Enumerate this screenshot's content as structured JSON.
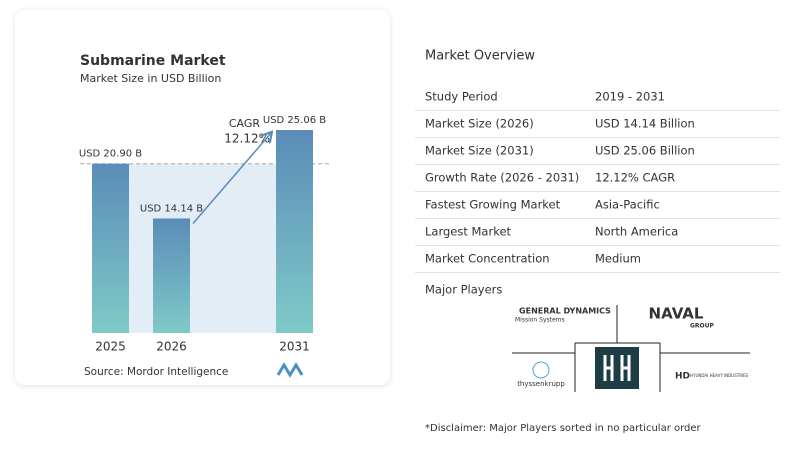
{
  "chart_data": {
    "type": "bar",
    "title": "Submarine Market",
    "subtitle": "Market Size in USD Billion",
    "categories": [
      "2025",
      "2026",
      "2031"
    ],
    "values": [
      20.9,
      14.14,
      25.06
    ],
    "value_labels": [
      "USD 20.90 B",
      "USD 14.14 B",
      "USD 25.06 B"
    ],
    "colors": [
      "#5b8cb8",
      "#7fcac8"
    ],
    "annotations": [
      "CAGR",
      "12.12%"
    ],
    "source": "Source: Mordor Intelligence"
  },
  "overview": {
    "title": "Market Overview",
    "rows": [
      [
        "Study Period",
        "2019 - 2031"
      ],
      [
        "Market Size (2026)",
        "USD 14.14 Billion"
      ],
      [
        "Market Size (2031)",
        "USD 25.06 Billion"
      ],
      [
        "Growth Rate (2026 - 2031)",
        "12.12% CAGR"
      ],
      [
        "Fastest Growing Market",
        "Asia-Pacific"
      ],
      [
        "Largest Market",
        "North America"
      ],
      [
        "Market Concentration",
        "Medium"
      ]
    ],
    "players_title": "Major Players",
    "players": [
      "GENERAL DYNAMICS",
      "Mission Systems",
      "NAVAL",
      "GROUP",
      "thyssenkrupp",
      "HD",
      "HYUNDAI HEAVY INDUSTRIES"
    ],
    "disclaimer": "*Disclaimer: Major Players sorted in no particular order"
  }
}
